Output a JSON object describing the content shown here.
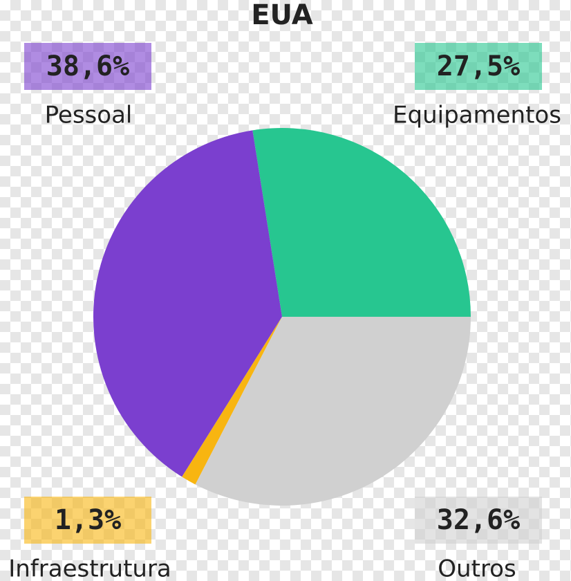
{
  "chart_data": {
    "type": "pie",
    "title": "EUA",
    "categories": [
      "Equipamentos",
      "Pessoal",
      "Infraestrutura",
      "Outros"
    ],
    "values": [
      27.5,
      38.6,
      1.3,
      32.6
    ],
    "value_labels": [
      "27,5%",
      "38,6%",
      "1,3%",
      "32,6%"
    ],
    "colors": [
      "#27c690",
      "#7b3fcf",
      "#f8b511",
      "#d0d0d0"
    ]
  }
}
